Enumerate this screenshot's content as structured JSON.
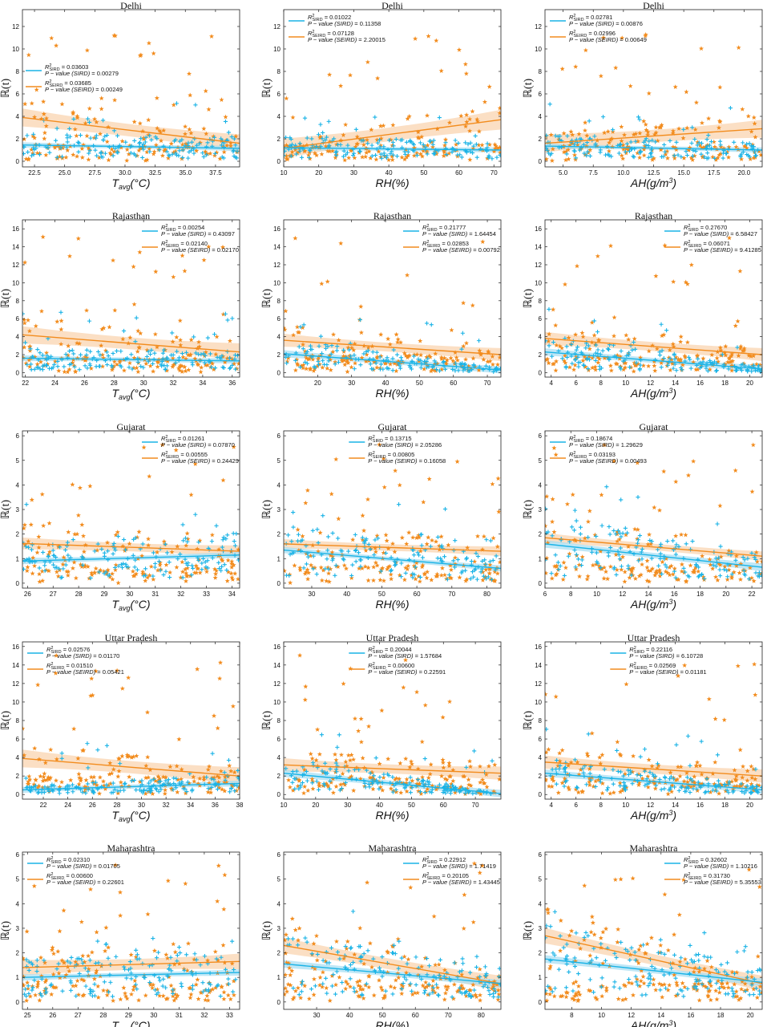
{
  "colors": {
    "sird": "#1ab3e6",
    "seird": "#f28c1e",
    "sird_band": "#a9dff3",
    "seird_band": "#f9d4b0"
  },
  "ylabel": "ℝ(t)",
  "xlabels": [
    "T_avg(°C)",
    "RH(%)",
    "AH(g/m³)"
  ],
  "legend_labels": {
    "r2_sird": "R²_SIRD",
    "p_sird": "P − value (SIRD)",
    "r2_seird": "R²_SEIRD",
    "p_seird": "P − value (SEIRD)"
  },
  "chart_data": [
    {
      "type": "scatter",
      "state": "Delhi",
      "title": "Delhi",
      "variable": "Tavg",
      "xlim": [
        21.5,
        39.5
      ],
      "xticks": [
        22.5,
        25.0,
        27.5,
        30.0,
        32.5,
        35.0,
        37.5
      ],
      "ylim": [
        -0.5,
        13.5
      ],
      "yticks": [
        0,
        2,
        4,
        6,
        8,
        10,
        12
      ],
      "fit_sird": [
        1.45,
        1.15
      ],
      "fit_seird": [
        3.9,
        1.6
      ],
      "band_sird": 0.15,
      "band_seird": 0.5,
      "r2_sird": "0.03603",
      "p_sird": "0.00279",
      "r2_seird": "0.03685",
      "p_seird": "0.00249",
      "legend_pos": "left-middle"
    },
    {
      "type": "scatter",
      "state": "Delhi",
      "title": "Delhi",
      "variable": "RH",
      "xlim": [
        10,
        72
      ],
      "xticks": [
        10,
        20,
        30,
        40,
        50,
        60,
        70
      ],
      "ylim": [
        -0.5,
        13.5
      ],
      "yticks": [
        0,
        2,
        4,
        6,
        8,
        10,
        12
      ],
      "fit_sird": [
        1.2,
        1.0
      ],
      "fit_seird": [
        1.15,
        3.7
      ],
      "band_sird": 0.15,
      "band_seird": 0.55,
      "r2_sird": "0.01022",
      "p_sird": "0.11358",
      "r2_seird": "0.07128",
      "p_seird": "2.20015",
      "legend_pos": "top-left"
    },
    {
      "type": "scatter",
      "state": "Delhi",
      "title": "Delhi",
      "variable": "AH",
      "xlim": [
        3.5,
        21.5
      ],
      "xticks": [
        5.0,
        7.5,
        10.0,
        12.5,
        15.0,
        17.5,
        20.0
      ],
      "ylim": [
        -0.5,
        13.5
      ],
      "yticks": [
        0,
        2,
        4,
        6,
        8,
        10,
        12
      ],
      "fit_sird": [
        1.35,
        1.0
      ],
      "fit_seird": [
        1.6,
        2.9
      ],
      "band_sird": 0.15,
      "band_seird": 0.5,
      "r2_sird": "0.02781",
      "p_sird": "0.00876",
      "r2_seird": "0.02996",
      "p_seird": "0.00649",
      "legend_pos": "top-left"
    },
    {
      "type": "scatter",
      "state": "Rajasthan",
      "title": "Rajasthan",
      "variable": "Tavg",
      "xlim": [
        21.8,
        36.5
      ],
      "xticks": [
        22,
        24,
        26,
        28,
        30,
        32,
        34,
        36
      ],
      "ylim": [
        -0.5,
        17
      ],
      "yticks": [
        0,
        2,
        4,
        6,
        8,
        10,
        12,
        14,
        16
      ],
      "fit_sird": [
        1.6,
        1.3
      ],
      "fit_seird": [
        4.2,
        2.3
      ],
      "band_sird": 0.2,
      "band_seird": 0.6,
      "r2_sird": "0.00254",
      "p_sird": "0.43097",
      "r2_seird": "0.02140",
      "p_seird": "0.02170",
      "legend_pos": "top-right"
    },
    {
      "type": "scatter",
      "state": "Rajasthan",
      "title": "Rajasthan",
      "variable": "RH",
      "xlim": [
        10,
        74
      ],
      "xticks": [
        20,
        30,
        40,
        50,
        60,
        70
      ],
      "ylim": [
        -0.5,
        17
      ],
      "yticks": [
        0,
        2,
        4,
        6,
        8,
        10,
        12,
        14,
        16
      ],
      "fit_sird": [
        2.1,
        0.3
      ],
      "fit_seird": [
        3.6,
        2.0
      ],
      "band_sird": 0.25,
      "band_seird": 0.45,
      "r2_sird": "0.21777",
      "p_sird": "1.64454",
      "r2_seird": "0.02853",
      "p_seird": "0.00792",
      "legend_pos": "top-right"
    },
    {
      "type": "scatter",
      "state": "Rajasthan",
      "title": "Rajasthan",
      "variable": "AH",
      "xlim": [
        3.5,
        21
      ],
      "xticks": [
        4,
        6,
        8,
        10,
        12,
        14,
        16,
        18,
        20
      ],
      "ylim": [
        -0.5,
        17
      ],
      "yticks": [
        0,
        2,
        4,
        6,
        8,
        10,
        12,
        14,
        16
      ],
      "fit_sird": [
        2.3,
        0.4
      ],
      "fit_seird": [
        3.8,
        2.0
      ],
      "band_sird": 0.25,
      "band_seird": 0.45,
      "r2_sird": "0.27670",
      "p_sird": "6.58427",
      "r2_seird": "0.06071",
      "p_seird": "9.41285",
      "legend_pos": "top-right"
    },
    {
      "type": "scatter",
      "state": "Gujarat",
      "title": "Gujarat",
      "variable": "Tavg",
      "xlim": [
        25.8,
        34.3
      ],
      "xticks": [
        26,
        27,
        28,
        29,
        30,
        31,
        32,
        33,
        34
      ],
      "ylim": [
        -0.2,
        6.2
      ],
      "yticks": [
        0,
        1,
        2,
        3,
        4,
        5,
        6
      ],
      "fit_sird": [
        0.9,
        1.15
      ],
      "fit_seird": [
        1.62,
        1.3
      ],
      "band_sird": 0.08,
      "band_seird": 0.15,
      "r2_sird": "0.01261",
      "p_sird": "0.07870",
      "r2_seird": "0.00555",
      "p_seird": "0.24429",
      "legend_pos": "top-right"
    },
    {
      "type": "scatter",
      "state": "Gujarat",
      "title": "Gujarat",
      "variable": "RH",
      "xlim": [
        22,
        84
      ],
      "xticks": [
        30,
        40,
        50,
        60,
        70,
        80
      ],
      "ylim": [
        -0.2,
        6.2
      ],
      "yticks": [
        0,
        1,
        2,
        3,
        4,
        5,
        6
      ],
      "fit_sird": [
        1.35,
        0.6
      ],
      "fit_seird": [
        1.6,
        1.3
      ],
      "band_sird": 0.08,
      "band_seird": 0.12,
      "r2_sird": "0.13715",
      "p_sird": "2.05286",
      "r2_seird": "0.00805",
      "p_seird": "0.16058",
      "legend_pos": "top-middle"
    },
    {
      "type": "scatter",
      "state": "Gujarat",
      "title": "Gujarat",
      "variable": "AH",
      "xlim": [
        6,
        22.8
      ],
      "xticks": [
        6,
        8,
        10,
        12,
        14,
        16,
        18,
        20,
        22
      ],
      "ylim": [
        -0.2,
        6.2
      ],
      "yticks": [
        0,
        1,
        2,
        3,
        4,
        5,
        6
      ],
      "fit_sird": [
        1.6,
        0.65
      ],
      "fit_seird": [
        1.85,
        1.1
      ],
      "band_sird": 0.1,
      "band_seird": 0.12,
      "r2_sird": "0.18674",
      "p_sird": "1.29629",
      "r2_seird": "0.03193",
      "p_seird": "0.00493",
      "legend_pos": "top-left"
    },
    {
      "type": "scatter",
      "state": "Uttar Pradesh",
      "title": "Uttar Pradesh",
      "variable": "Tavg",
      "xlim": [
        20.3,
        38
      ],
      "xticks": [
        22,
        24,
        26,
        28,
        30,
        32,
        34,
        36,
        38
      ],
      "ylim": [
        -0.5,
        16.5
      ],
      "yticks": [
        0,
        2,
        4,
        6,
        8,
        10,
        12,
        14,
        16
      ],
      "fit_sird": [
        0.5,
        1.2
      ],
      "fit_seird": [
        3.9,
        2.0
      ],
      "band_sird": 0.2,
      "band_seird": 0.6,
      "r2_sird": "0.02576",
      "p_sird": "0.01170",
      "r2_seird": "0.01510",
      "p_seird": "0.05421",
      "legend_pos": "top-left"
    },
    {
      "type": "scatter",
      "state": "Uttar Pradesh",
      "title": "Uttar Pradesh",
      "variable": "RH",
      "xlim": [
        10,
        78
      ],
      "xticks": [
        10,
        20,
        30,
        40,
        50,
        60,
        70
      ],
      "ylim": [
        -0.5,
        16.5
      ],
      "yticks": [
        0,
        2,
        4,
        6,
        8,
        10,
        12,
        14,
        16
      ],
      "fit_sird": [
        2.3,
        0.1
      ],
      "fit_seird": [
        3.2,
        2.3
      ],
      "band_sird": 0.25,
      "band_seird": 0.45,
      "r2_sird": "0.20044",
      "p_sird": "1.57684",
      "r2_seird": "0.00600",
      "p_seird": "0.22591",
      "legend_pos": "top-middle"
    },
    {
      "type": "scatter",
      "state": "Uttar Pradesh",
      "title": "Uttar Pradesh",
      "variable": "AH",
      "xlim": [
        3.5,
        21
      ],
      "xticks": [
        4,
        6,
        8,
        10,
        12,
        14,
        16,
        18,
        20
      ],
      "ylim": [
        -0.5,
        16.5
      ],
      "yticks": [
        0,
        2,
        4,
        6,
        8,
        10,
        12,
        14,
        16
      ],
      "fit_sird": [
        2.3,
        0.5
      ],
      "fit_seird": [
        3.5,
        2.0
      ],
      "band_sird": 0.25,
      "band_seird": 0.45,
      "r2_sird": "0.22116",
      "p_sird": "6.10728",
      "r2_seird": "0.02569",
      "p_seird": "0.01181",
      "legend_pos": "top-middle"
    },
    {
      "type": "scatter",
      "state": "Maharashtra",
      "title": "Maharashtra",
      "variable": "Tavg",
      "xlim": [
        24.8,
        33.4
      ],
      "xticks": [
        25,
        26,
        27,
        28,
        29,
        30,
        31,
        32,
        33
      ],
      "ylim": [
        -0.3,
        6.1
      ],
      "yticks": [
        0,
        1,
        2,
        3,
        4,
        5,
        6
      ],
      "fit_sird": [
        1.0,
        1.2
      ],
      "fit_seird": [
        1.4,
        1.65
      ],
      "band_sird": 0.08,
      "band_seird": 0.2,
      "r2_sird": "0.02310",
      "p_sird": "0.01705",
      "r2_seird": "0.00600",
      "p_seird": "0.22601",
      "legend_pos": "top-left"
    },
    {
      "type": "scatter",
      "state": "Maharashtra",
      "title": "Maharashtra",
      "variable": "RH",
      "xlim": [
        20,
        86
      ],
      "xticks": [
        30,
        40,
        50,
        60,
        70,
        80
      ],
      "ylim": [
        -0.3,
        6.1
      ],
      "yticks": [
        0,
        1,
        2,
        3,
        4,
        5,
        6
      ],
      "fit_sird": [
        1.55,
        0.75
      ],
      "fit_seird": [
        2.3,
        0.75
      ],
      "band_sird": 0.1,
      "band_seird": 0.2,
      "r2_sird": "0.22912",
      "p_sird": "1.71419",
      "r2_seird": "0.20105",
      "p_seird": "1.43445",
      "legend_pos": "top-right"
    },
    {
      "type": "scatter",
      "state": "Maharashtra",
      "title": "Maharashtra",
      "variable": "AH",
      "xlim": [
        6.2,
        20.8
      ],
      "xticks": [
        8,
        10,
        12,
        14,
        16,
        18,
        20
      ],
      "ylim": [
        -0.3,
        6.1
      ],
      "yticks": [
        0,
        1,
        2,
        3,
        4,
        5,
        6
      ],
      "fit_sird": [
        1.75,
        0.8
      ],
      "fit_seird": [
        2.7,
        0.75
      ],
      "band_sird": 0.1,
      "band_seird": 0.2,
      "r2_sird": "0.32602",
      "p_sird": "1.10216",
      "r2_seird": "0.31730",
      "p_seird": "5.35553",
      "legend_pos": "top-right"
    }
  ]
}
